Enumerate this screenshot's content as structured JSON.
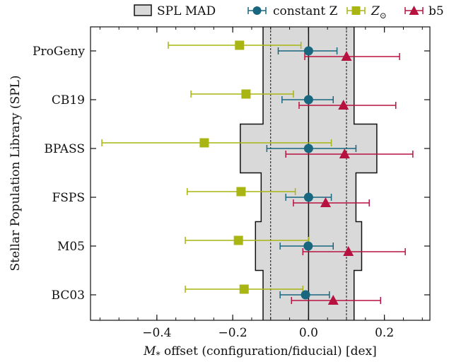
{
  "chart_data": {
    "type": "scatter",
    "title": "",
    "xlabel": "M_* offset (configuration/fiducial) [dex]",
    "xlabel_parts": {
      "main": "M",
      "subscript": "*",
      "rest": " offset (configuration/fiducial) [dex]"
    },
    "ylabel": "Stellar Population Library (SPL)",
    "xlim": [
      -0.575,
      0.32
    ],
    "xticks": [
      -0.4,
      -0.2,
      0.0,
      0.2
    ],
    "xtick_labels": [
      "−0.4",
      "−0.2",
      "0.0",
      "0.2"
    ],
    "reference_lines": {
      "solid_x": 0.0,
      "dashed_x": [
        -0.1,
        0.1
      ]
    },
    "categories": [
      "ProGeny",
      "CB19",
      "BPASS",
      "FSPS",
      "M05",
      "BC03"
    ],
    "legend_position": "top",
    "legend": {
      "band_label": "SPL MAD",
      "items": [
        {
          "label": "constant Z"
        },
        {
          "label": "Z",
          "subscript": "⊙"
        },
        {
          "label": "b5"
        }
      ]
    },
    "band": {
      "name": "SPL MAD",
      "color": "#d9d9d9",
      "half_widths": [
        0.12,
        0.12,
        0.18,
        0.125,
        0.14,
        0.12
      ]
    },
    "series": [
      {
        "name": "constant Z",
        "marker": "circle",
        "color": "#19677f",
        "values": [
          0.0,
          0.0,
          0.0,
          0.0,
          -0.001,
          -0.008
        ],
        "err_low": [
          -0.08,
          -0.07,
          -0.11,
          -0.06,
          -0.075,
          -0.075
        ],
        "err_high": [
          0.075,
          0.065,
          0.125,
          0.06,
          0.065,
          0.055
        ]
      },
      {
        "name": "Z_sun",
        "marker": "square",
        "color": "#a8b512",
        "values": [
          -0.182,
          -0.165,
          -0.275,
          -0.178,
          -0.185,
          -0.17
        ],
        "err_low": [
          -0.37,
          -0.31,
          -0.545,
          -0.32,
          -0.325,
          -0.325
        ],
        "err_high": [
          -0.02,
          -0.04,
          0.06,
          -0.035,
          0.0,
          -0.015
        ]
      },
      {
        "name": "b5",
        "marker": "triangle",
        "color": "#b7123f",
        "values": [
          0.1,
          0.092,
          0.095,
          0.045,
          0.105,
          0.065
        ],
        "err_low": [
          -0.01,
          -0.025,
          -0.06,
          -0.04,
          -0.015,
          -0.045
        ],
        "err_high": [
          0.24,
          0.23,
          0.275,
          0.16,
          0.255,
          0.19
        ]
      }
    ]
  }
}
